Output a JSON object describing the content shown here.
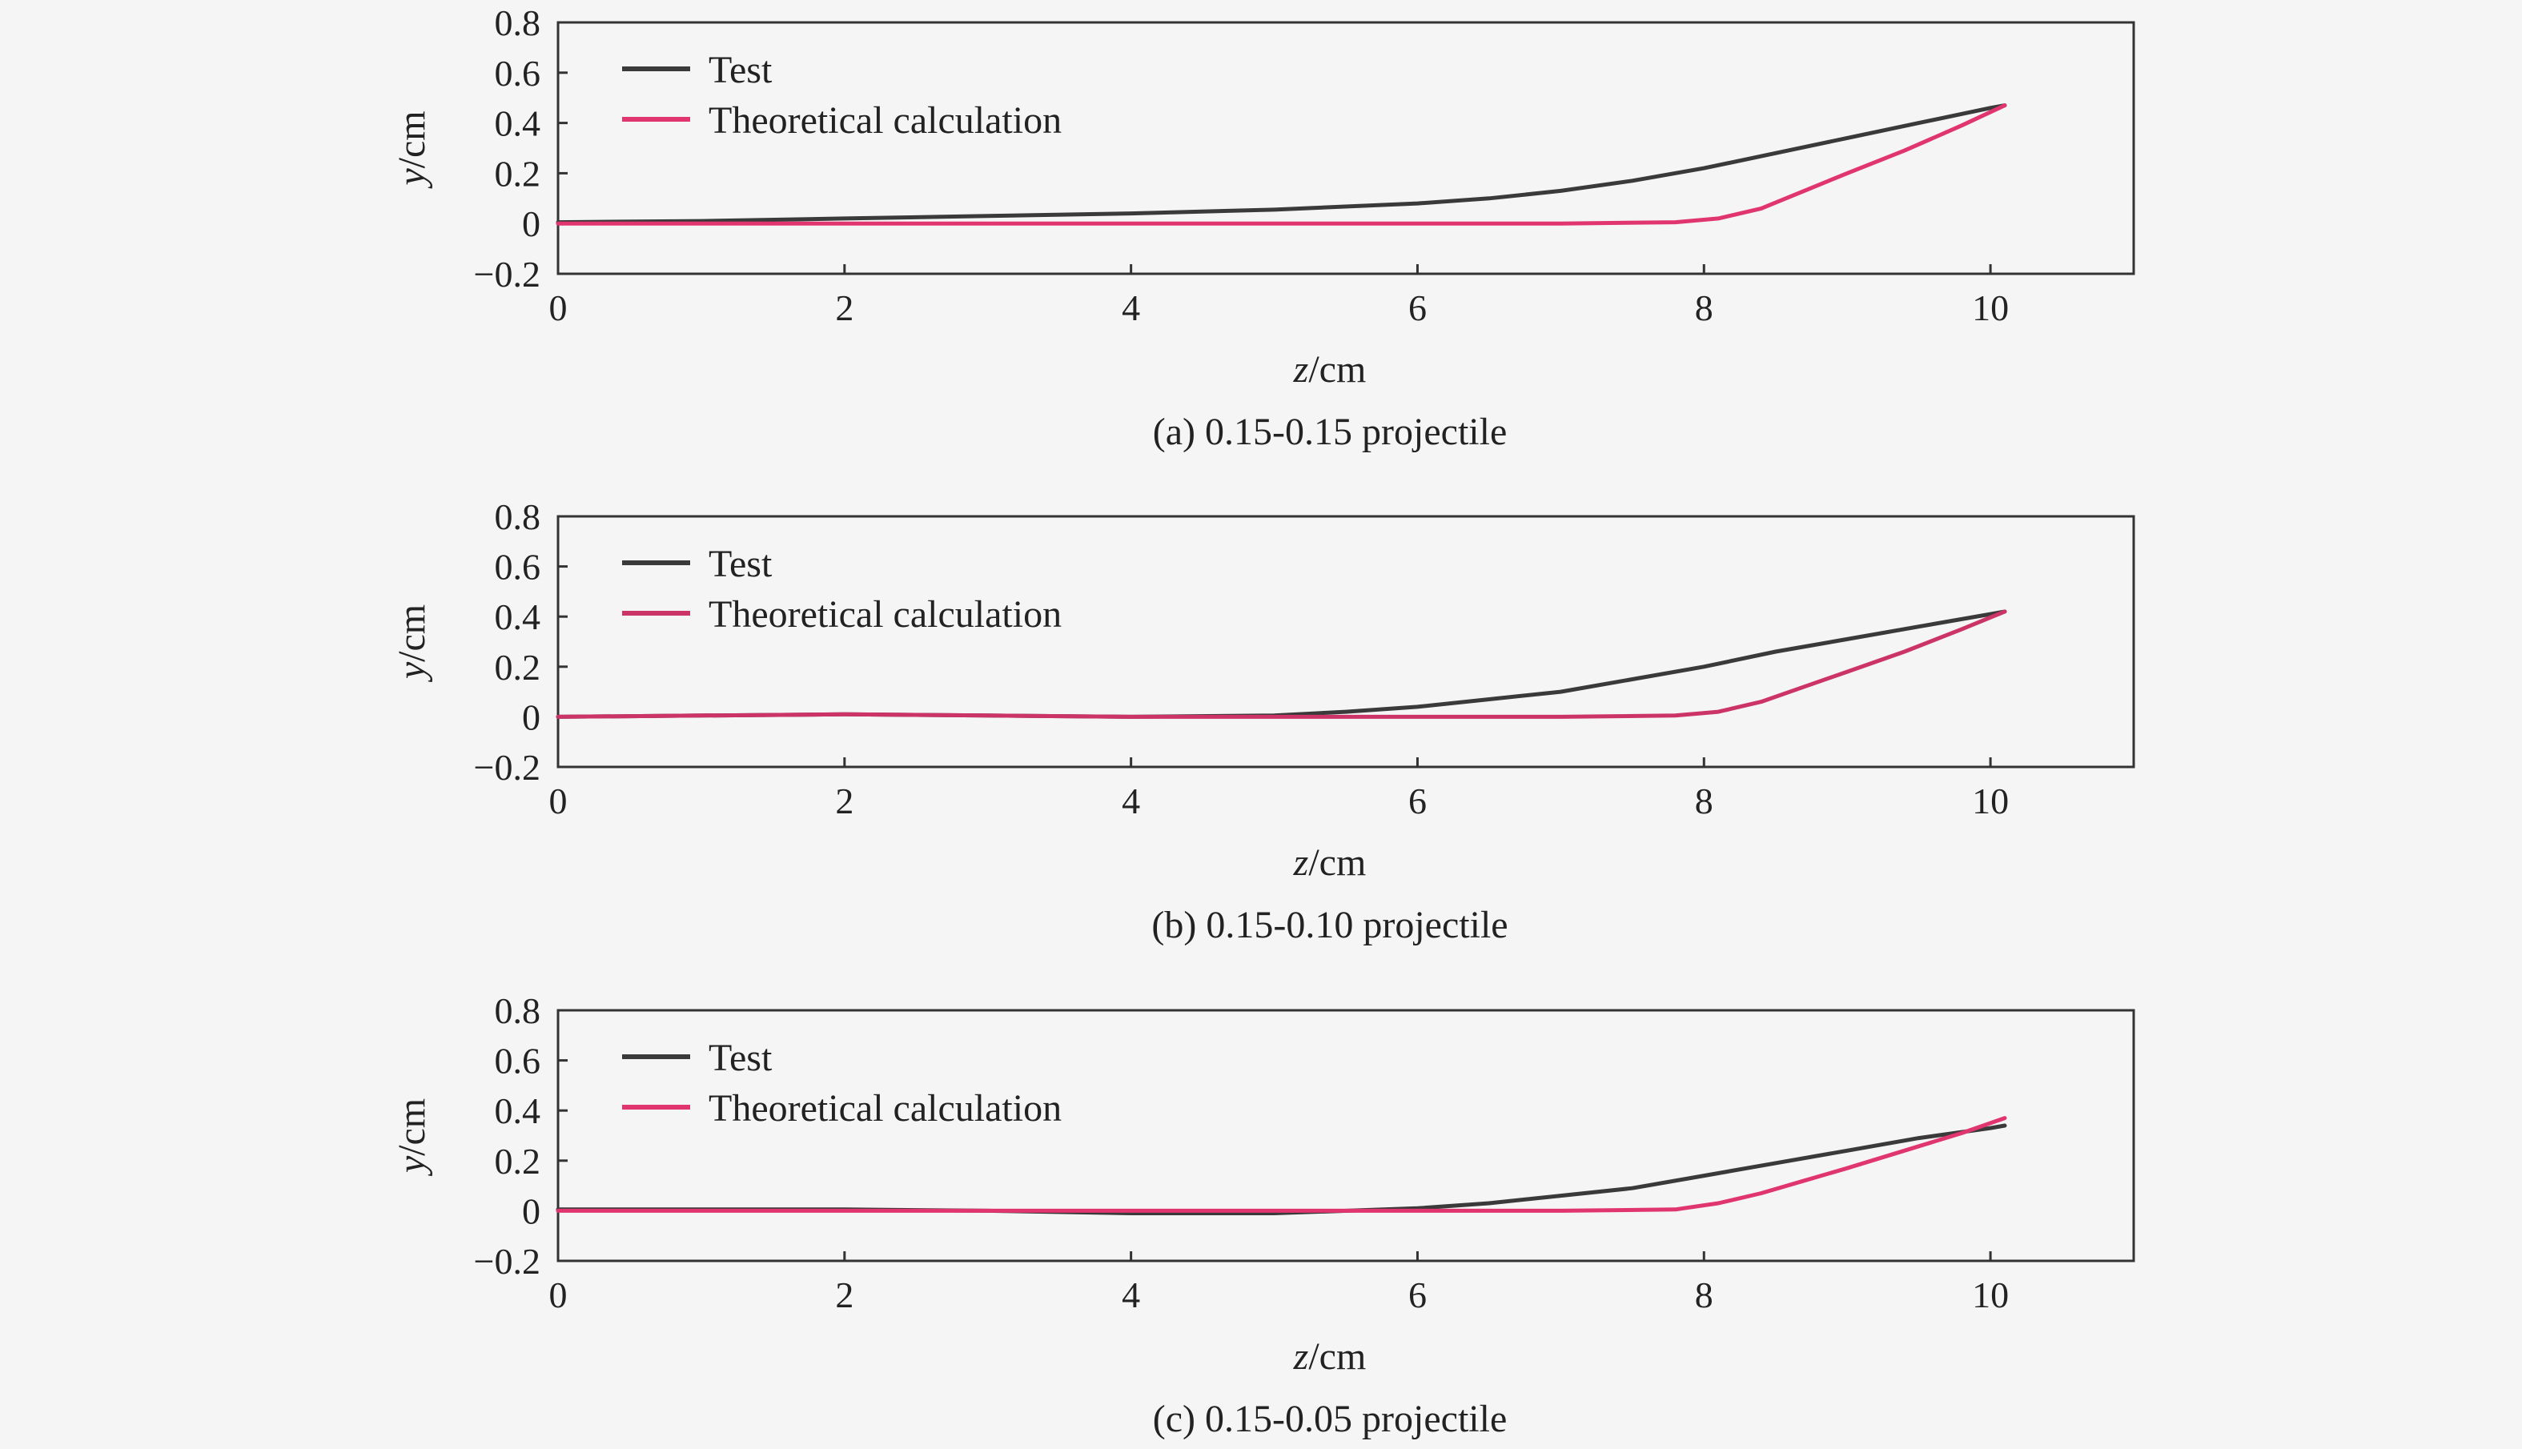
{
  "chart_data": [
    {
      "type": "line",
      "caption": "(a) 0.15-0.15 projectile",
      "xlabel_var": "z",
      "xlabel_unit": "/cm",
      "ylabel_var": "y",
      "ylabel_unit": "/cm",
      "xlim": [
        0,
        11
      ],
      "ylim": [
        -0.2,
        0.8
      ],
      "xticks": [
        0,
        2,
        4,
        6,
        8,
        10
      ],
      "yticks": [
        -0.2,
        0,
        0.2,
        0.4,
        0.6,
        0.8
      ],
      "xtick_labels": [
        "0",
        "2",
        "4",
        "6",
        "8",
        "10"
      ],
      "ytick_labels": [
        "−0.2",
        "0",
        "0.2",
        "0.4",
        "0.6",
        "0.8"
      ],
      "legend_position": "top-left",
      "series": [
        {
          "name": "Test",
          "color": "#3a3a3a",
          "x": [
            0,
            1,
            2,
            3,
            4,
            5,
            6,
            6.5,
            7,
            7.5,
            8,
            8.5,
            9,
            9.5,
            10,
            10.1
          ],
          "y": [
            0.005,
            0.01,
            0.02,
            0.03,
            0.04,
            0.055,
            0.08,
            0.1,
            0.13,
            0.17,
            0.22,
            0.28,
            0.34,
            0.4,
            0.46,
            0.47
          ]
        },
        {
          "name": "Theoretical calculation",
          "color": "#e0356e",
          "x": [
            0,
            1,
            2,
            3,
            4,
            5,
            6,
            7,
            7.8,
            8.1,
            8.4,
            8.7,
            9.0,
            9.4,
            9.8,
            10.1
          ],
          "y": [
            0,
            0,
            0,
            0,
            0,
            0,
            0,
            0,
            0.005,
            0.02,
            0.06,
            0.13,
            0.2,
            0.29,
            0.39,
            0.47
          ]
        }
      ]
    },
    {
      "type": "line",
      "caption": "(b) 0.15-0.10 projectile",
      "xlabel_var": "z",
      "xlabel_unit": "/cm",
      "ylabel_var": "y",
      "ylabel_unit": "/cm",
      "xlim": [
        0,
        11
      ],
      "ylim": [
        -0.2,
        0.8
      ],
      "xticks": [
        0,
        2,
        4,
        6,
        8,
        10
      ],
      "yticks": [
        -0.2,
        0,
        0.2,
        0.4,
        0.6,
        0.8
      ],
      "xtick_labels": [
        "0",
        "2",
        "4",
        "6",
        "8",
        "10"
      ],
      "ytick_labels": [
        "−0.2",
        "0",
        "0.2",
        "0.4",
        "0.6",
        "0.8"
      ],
      "legend_position": "top-left",
      "series": [
        {
          "name": "Test",
          "color": "#3a3a3a",
          "x": [
            0,
            1,
            2,
            3,
            4,
            5,
            5.5,
            6,
            6.5,
            7,
            7.5,
            8,
            8.5,
            9,
            9.5,
            10,
            10.1
          ],
          "y": [
            0,
            0.005,
            0.01,
            0.005,
            0,
            0.005,
            0.02,
            0.04,
            0.07,
            0.1,
            0.15,
            0.2,
            0.26,
            0.31,
            0.36,
            0.41,
            0.42
          ]
        },
        {
          "name": "Theoretical calculation",
          "color": "#cc3366",
          "x": [
            0,
            1,
            2,
            3,
            4,
            5,
            6,
            7,
            7.8,
            8.1,
            8.4,
            8.7,
            9.0,
            9.4,
            9.8,
            10.1
          ],
          "y": [
            0,
            0.005,
            0.01,
            0.005,
            0,
            0,
            0,
            0,
            0.005,
            0.02,
            0.06,
            0.12,
            0.18,
            0.26,
            0.35,
            0.42
          ]
        }
      ]
    },
    {
      "type": "line",
      "caption": "(c) 0.15-0.05 projectile",
      "xlabel_var": "z",
      "xlabel_unit": "/cm",
      "ylabel_var": "y",
      "ylabel_unit": "/cm",
      "xlim": [
        0,
        11
      ],
      "ylim": [
        -0.2,
        0.8
      ],
      "xticks": [
        0,
        2,
        4,
        6,
        8,
        10
      ],
      "yticks": [
        -0.2,
        0,
        0.2,
        0.4,
        0.6,
        0.8
      ],
      "xtick_labels": [
        "0",
        "2",
        "4",
        "6",
        "8",
        "10"
      ],
      "ytick_labels": [
        "−0.2",
        "0",
        "0.2",
        "0.4",
        "0.6",
        "0.8"
      ],
      "legend_position": "top-left",
      "series": [
        {
          "name": "Test",
          "color": "#3a3a3a",
          "x": [
            0,
            1,
            2,
            3,
            4,
            5,
            6,
            6.5,
            7,
            7.5,
            8,
            8.5,
            9,
            9.5,
            10,
            10.1
          ],
          "y": [
            0.005,
            0.005,
            0.005,
            0,
            -0.01,
            -0.01,
            0.01,
            0.03,
            0.06,
            0.09,
            0.14,
            0.19,
            0.24,
            0.29,
            0.33,
            0.34
          ]
        },
        {
          "name": "Theoretical calculation",
          "color": "#e0356e",
          "x": [
            0,
            1,
            2,
            3,
            4,
            5,
            6,
            7,
            7.8,
            8.1,
            8.4,
            8.7,
            9.0,
            9.4,
            9.8,
            10.1
          ],
          "y": [
            0,
            0,
            0,
            0,
            0,
            0,
            0,
            0,
            0.005,
            0.03,
            0.07,
            0.12,
            0.17,
            0.24,
            0.31,
            0.37
          ]
        }
      ]
    }
  ]
}
